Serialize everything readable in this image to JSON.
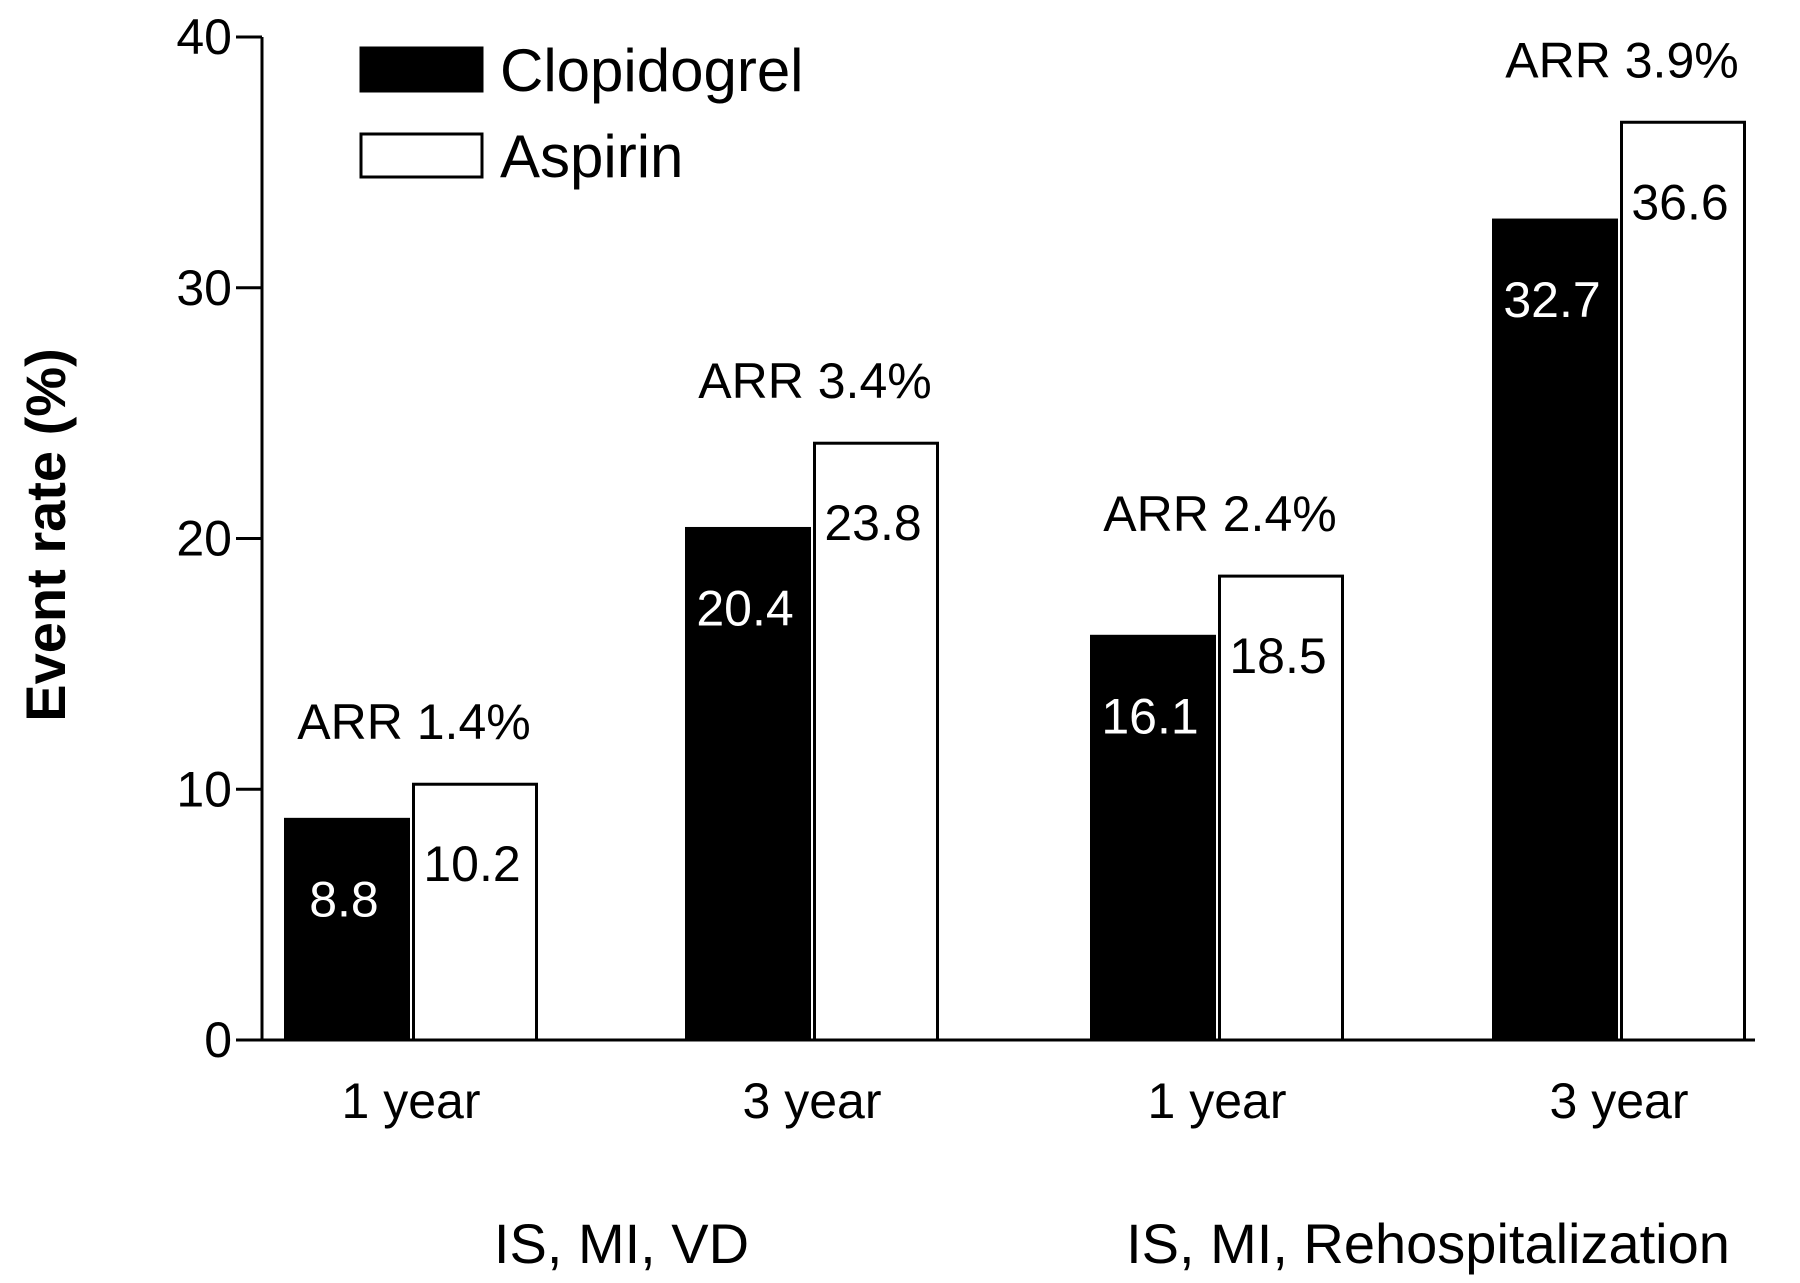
{
  "chart_data": {
    "type": "bar",
    "title": "",
    "xlabel": "",
    "ylabel": "Event rate (%)",
    "ylim": [
      0,
      40
    ],
    "yticks": [
      0,
      10,
      20,
      30,
      40
    ],
    "grid": false,
    "legend_position": "top-left",
    "categories": [
      "1 year",
      "3 year",
      "1 year",
      "3 year"
    ],
    "groups": [
      {
        "label": "IS, MI, VD",
        "categories": [
          0,
          1
        ]
      },
      {
        "label": "IS, MI, Rehospitalization",
        "categories": [
          2,
          3
        ]
      }
    ],
    "series": [
      {
        "name": "Clopidogrel",
        "color": "#000000",
        "values": [
          8.8,
          20.4,
          16.1,
          32.7
        ],
        "labels": [
          "8.8",
          "20.4",
          "16.1",
          "32.7"
        ]
      },
      {
        "name": "Aspirin",
        "color": "#ffffff",
        "values": [
          10.2,
          23.8,
          18.5,
          36.6
        ],
        "labels": [
          "10.2",
          "23.8",
          "18.5",
          "36.6"
        ]
      }
    ],
    "annotations": [
      "ARR 1.4%",
      "ARR 3.4%",
      "ARR 2.4%",
      "ARR 3.9%"
    ]
  }
}
